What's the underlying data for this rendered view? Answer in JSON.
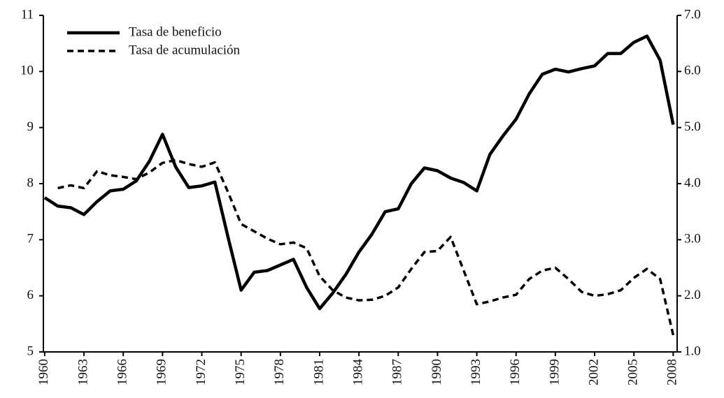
{
  "chart_data": {
    "type": "line",
    "x": [
      1960,
      1961,
      1962,
      1963,
      1964,
      1965,
      1966,
      1967,
      1968,
      1969,
      1970,
      1971,
      1972,
      1973,
      1974,
      1975,
      1976,
      1977,
      1978,
      1979,
      1980,
      1981,
      1982,
      1983,
      1984,
      1985,
      1986,
      1987,
      1988,
      1989,
      1990,
      1991,
      1992,
      1993,
      1994,
      1995,
      1996,
      1997,
      1998,
      1999,
      2000,
      2001,
      2002,
      2003,
      2004,
      2005,
      2006,
      2007,
      2008
    ],
    "xlim": [
      1959.9,
      2008.3
    ],
    "xticks": [
      1960,
      1963,
      1966,
      1969,
      1972,
      1975,
      1978,
      1981,
      1984,
      1987,
      1990,
      1993,
      1996,
      1999,
      2002,
      2005,
      2008
    ],
    "ylim": [
      5,
      11
    ],
    "yticks": [
      5,
      6,
      7,
      8,
      9,
      10,
      11
    ],
    "y2lim": [
      1.0,
      7.0
    ],
    "y2ticks": [
      {
        "value": 1.0,
        "label": "1.0"
      },
      {
        "value": 2.0,
        "label": "2.0"
      },
      {
        "value": 3.0,
        "label": "3.0"
      },
      {
        "value": 4.0,
        "label": "4.0"
      },
      {
        "value": 5.0,
        "label": "5.0"
      },
      {
        "value": 6.0,
        "label": "6.0"
      },
      {
        "value": 7.0,
        "label": "7.0"
      }
    ],
    "legend": "top-left",
    "series": [
      {
        "name": "Tasa de beneficio",
        "color": "#000000",
        "style": "solid",
        "values": [
          7.75,
          7.6,
          7.57,
          7.45,
          7.68,
          7.87,
          7.9,
          8.05,
          8.4,
          8.88,
          8.3,
          7.93,
          7.96,
          8.03,
          7.05,
          6.1,
          6.42,
          6.45,
          6.55,
          6.65,
          6.15,
          5.77,
          6.05,
          6.38,
          6.78,
          7.1,
          7.5,
          7.55,
          8.0,
          8.28,
          8.23,
          8.1,
          8.02,
          7.87,
          8.52,
          8.85,
          9.15,
          9.6,
          9.95,
          10.04,
          9.99,
          10.05,
          10.1,
          10.32,
          10.32,
          10.52,
          10.63,
          10.2,
          9.05
        ]
      },
      {
        "name": "Tasa de acumulación",
        "color": "#000000",
        "style": "dashed",
        "axis": "y2",
        "values": [
          null,
          3.92,
          3.97,
          3.92,
          4.22,
          4.15,
          4.12,
          4.08,
          4.2,
          4.37,
          4.42,
          4.35,
          4.3,
          4.38,
          3.85,
          3.28,
          3.15,
          3.02,
          2.92,
          2.95,
          2.85,
          2.35,
          2.1,
          1.97,
          1.92,
          1.93,
          2.0,
          2.15,
          2.48,
          2.78,
          2.8,
          3.05,
          2.45,
          1.85,
          1.9,
          1.97,
          2.02,
          2.3,
          2.45,
          2.5,
          2.3,
          2.07,
          2.0,
          2.03,
          2.1,
          2.32,
          2.48,
          2.3,
          1.3
        ]
      }
    ]
  }
}
